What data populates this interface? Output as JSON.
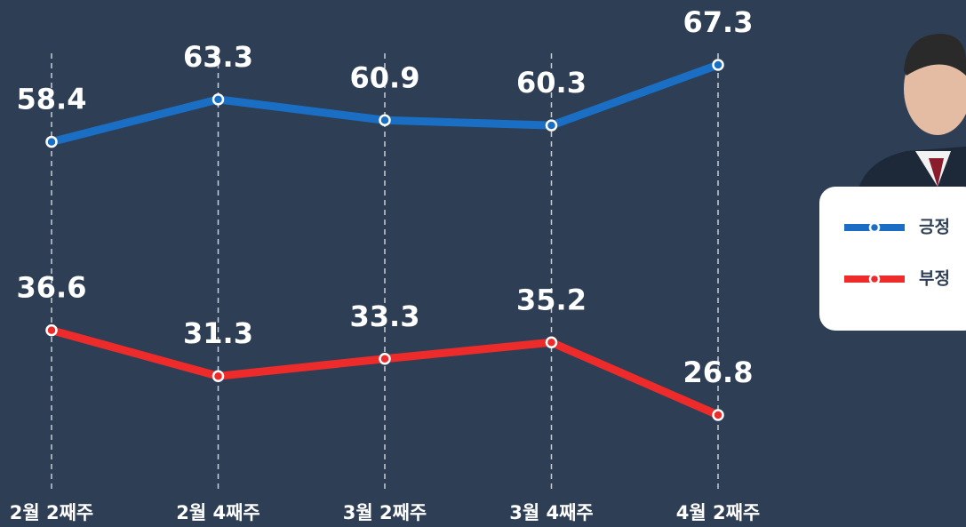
{
  "chart_data": {
    "type": "line",
    "categories": [
      "2월 2째주",
      "2월 4째주",
      "3월 2째주",
      "3월 4째주",
      "4월 2째주"
    ],
    "series": [
      {
        "name": "긍정",
        "color": "#1a6fc4",
        "values": [
          58.4,
          63.3,
          60.9,
          60.3,
          67.3
        ]
      },
      {
        "name": "부정",
        "color": "#ee2b2b",
        "values": [
          36.6,
          31.3,
          33.3,
          35.2,
          26.8
        ]
      }
    ]
  }
}
